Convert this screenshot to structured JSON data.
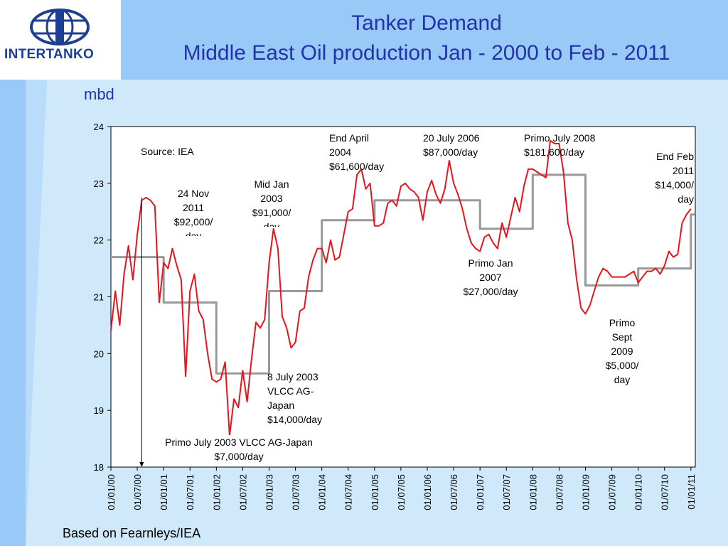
{
  "logo": {
    "text": "INTERTANKO"
  },
  "title": {
    "line1": "Tanker Demand",
    "line2": "Middle East Oil production Jan - 2000 to Feb - 2011"
  },
  "unit_label": "mbd",
  "footer": "Based on Fearnleys/IEA",
  "colors": {
    "production": "#e8141c",
    "average": "#999999",
    "header": "#99c9f7",
    "title": "#2233aa"
  },
  "annotations": {
    "source": "Source: IEA",
    "nov2011": [
      "24 Nov",
      "2011",
      "$92,000/",
      "day"
    ],
    "midjan2003": [
      "Mid Jan",
      "2003",
      "$91,000/",
      "day"
    ],
    "endapril2004": [
      "End April",
      "2004",
      "$61,600/day"
    ],
    "july2006": [
      "20 July 2006",
      "$87,000/day"
    ],
    "primojuly2008": [
      "Primo July 2008",
      "$181,600/day"
    ],
    "endfeb2011": [
      "End Feb",
      "2011",
      "$14,000/",
      "day"
    ],
    "primojan2007": [
      "Primo Jan",
      "2007",
      "$27,000/day"
    ],
    "primosept2009": [
      "Primo",
      "Sept",
      "2009",
      "$5,000/",
      "day"
    ],
    "july2003": [
      "8 July 2003",
      "VLCC AG-",
      "Japan",
      "$14,000/day"
    ],
    "primojuly2003": [
      "Primo July 2003 VLCC AG-Japan",
      "$7,000/day"
    ]
  },
  "chart_data": {
    "type": "line",
    "title": "",
    "xlabel": "",
    "ylabel": "mbd",
    "ylim": [
      18,
      24
    ],
    "yticks": [
      18,
      19,
      20,
      21,
      22,
      23,
      24
    ],
    "xlim": [
      "2000-01",
      "2011-02"
    ],
    "xticks": [
      "01/01/00",
      "01/07/00",
      "01/01/01",
      "01/07/01",
      "01/01/02",
      "01/07/02",
      "01/01/03",
      "01/07/03",
      "01/01/04",
      "01/07/04",
      "01/01/05",
      "01/07/05",
      "01/01/06",
      "01/07/06",
      "01/01/07",
      "01/07/07",
      "01/01/08",
      "01/07/08",
      "01/01/09",
      "01/07/09",
      "01/01/10",
      "01/07/10",
      "01/01/11"
    ],
    "grid": false,
    "series": [
      {
        "color": "#e8141c",
        "points": [
          [
            "2000-01",
            20.4
          ],
          [
            "2000-02",
            21.1
          ],
          [
            "2000-03",
            20.5
          ],
          [
            "2000-04",
            21.4
          ],
          [
            "2000-05",
            21.9
          ],
          [
            "2000-06",
            21.3
          ],
          [
            "2000-07",
            22.1
          ],
          [
            "2000-08",
            22.7
          ],
          [
            "2000-09",
            22.75
          ],
          [
            "2000-10",
            22.7
          ],
          [
            "2000-11",
            22.6
          ],
          [
            "2000-12",
            20.9
          ],
          [
            "2001-01",
            21.6
          ],
          [
            "2001-02",
            21.5
          ],
          [
            "2001-03",
            21.85
          ],
          [
            "2001-04",
            21.55
          ],
          [
            "2001-05",
            21.3
          ],
          [
            "2001-06",
            19.6
          ],
          [
            "2001-07",
            21.1
          ],
          [
            "2001-08",
            21.4
          ],
          [
            "2001-09",
            20.75
          ],
          [
            "2001-10",
            20.6
          ],
          [
            "2001-11",
            20.0
          ],
          [
            "2001-12",
            19.55
          ],
          [
            "2002-01",
            19.5
          ],
          [
            "2002-02",
            19.55
          ],
          [
            "2002-03",
            19.85
          ],
          [
            "2002-04",
            18.55
          ],
          [
            "2002-05",
            19.2
          ],
          [
            "2002-06",
            19.05
          ],
          [
            "2002-07",
            19.7
          ],
          [
            "2002-08",
            19.15
          ],
          [
            "2002-09",
            19.9
          ],
          [
            "2002-10",
            20.55
          ],
          [
            "2002-11",
            20.45
          ],
          [
            "2002-12",
            20.6
          ],
          [
            "2003-01",
            21.6
          ],
          [
            "2003-02",
            22.2
          ],
          [
            "2003-03",
            21.85
          ],
          [
            "2003-04",
            20.65
          ],
          [
            "2003-05",
            20.45
          ],
          [
            "2003-06",
            20.1
          ],
          [
            "2003-07",
            20.2
          ],
          [
            "2003-08",
            20.75
          ],
          [
            "2003-09",
            20.8
          ],
          [
            "2003-10",
            21.35
          ],
          [
            "2003-11",
            21.65
          ],
          [
            "2003-12",
            21.85
          ],
          [
            "2004-01",
            21.85
          ],
          [
            "2004-02",
            21.6
          ],
          [
            "2004-03",
            22.0
          ],
          [
            "2004-04",
            21.65
          ],
          [
            "2004-05",
            21.7
          ],
          [
            "2004-06",
            22.1
          ],
          [
            "2004-07",
            22.5
          ],
          [
            "2004-08",
            22.55
          ],
          [
            "2004-09",
            23.15
          ],
          [
            "2004-10",
            23.25
          ],
          [
            "2004-11",
            22.9
          ],
          [
            "2004-12",
            23.0
          ],
          [
            "2005-01",
            22.25
          ],
          [
            "2005-02",
            22.25
          ],
          [
            "2005-03",
            22.3
          ],
          [
            "2005-04",
            22.65
          ],
          [
            "2005-05",
            22.7
          ],
          [
            "2005-06",
            22.6
          ],
          [
            "2005-07",
            22.95
          ],
          [
            "2005-08",
            23.0
          ],
          [
            "2005-09",
            22.9
          ],
          [
            "2005-10",
            22.85
          ],
          [
            "2005-11",
            22.75
          ],
          [
            "2005-12",
            22.35
          ],
          [
            "2006-01",
            22.85
          ],
          [
            "2006-02",
            23.05
          ],
          [
            "2006-03",
            22.8
          ],
          [
            "2006-04",
            22.65
          ],
          [
            "2006-05",
            22.9
          ],
          [
            "2006-06",
            23.4
          ],
          [
            "2006-07",
            23.0
          ],
          [
            "2006-08",
            22.8
          ],
          [
            "2006-09",
            22.55
          ],
          [
            "2006-10",
            22.2
          ],
          [
            "2006-11",
            21.95
          ],
          [
            "2006-12",
            21.85
          ],
          [
            "2007-01",
            21.8
          ],
          [
            "2007-02",
            22.05
          ],
          [
            "2007-03",
            22.1
          ],
          [
            "2007-04",
            21.95
          ],
          [
            "2007-05",
            21.85
          ],
          [
            "2007-06",
            22.3
          ],
          [
            "2007-07",
            22.05
          ],
          [
            "2007-08",
            22.4
          ],
          [
            "2007-09",
            22.75
          ],
          [
            "2007-10",
            22.5
          ],
          [
            "2007-11",
            22.95
          ],
          [
            "2007-12",
            23.25
          ],
          [
            "2008-01",
            23.25
          ],
          [
            "2008-02",
            23.2
          ],
          [
            "2008-03",
            23.15
          ],
          [
            "2008-04",
            23.1
          ],
          [
            "2008-05",
            23.75
          ],
          [
            "2008-06",
            23.7
          ],
          [
            "2008-07",
            23.7
          ],
          [
            "2008-08",
            23.2
          ],
          [
            "2008-09",
            22.3
          ],
          [
            "2008-10",
            22.0
          ],
          [
            "2008-11",
            21.3
          ],
          [
            "2008-12",
            20.8
          ],
          [
            "2009-01",
            20.7
          ],
          [
            "2009-02",
            20.85
          ],
          [
            "2009-03",
            21.1
          ],
          [
            "2009-04",
            21.35
          ],
          [
            "2009-05",
            21.5
          ],
          [
            "2009-06",
            21.45
          ],
          [
            "2009-07",
            21.35
          ],
          [
            "2009-08",
            21.35
          ],
          [
            "2009-09",
            21.35
          ],
          [
            "2009-10",
            21.35
          ],
          [
            "2009-11",
            21.4
          ],
          [
            "2009-12",
            21.45
          ],
          [
            "2010-01",
            21.25
          ],
          [
            "2010-02",
            21.35
          ],
          [
            "2010-03",
            21.45
          ],
          [
            "2010-04",
            21.45
          ],
          [
            "2010-05",
            21.5
          ],
          [
            "2010-06",
            21.4
          ],
          [
            "2010-07",
            21.55
          ],
          [
            "2010-08",
            21.8
          ],
          [
            "2010-09",
            21.7
          ],
          [
            "2010-10",
            21.75
          ],
          [
            "2010-11",
            22.3
          ],
          [
            "2010-12",
            22.45
          ],
          [
            "2011-01",
            22.55
          ]
        ]
      },
      {
        "color": "#999999",
        "points": [
          [
            "2000-01",
            21.7
          ],
          [
            "2001-01",
            21.7
          ],
          [
            "2001-01",
            20.9
          ],
          [
            "2002-01",
            20.9
          ],
          [
            "2002-01",
            19.65
          ],
          [
            "2003-01",
            19.65
          ],
          [
            "2003-01",
            21.1
          ],
          [
            "2004-01",
            21.1
          ],
          [
            "2004-01",
            22.35
          ],
          [
            "2005-01",
            22.35
          ],
          [
            "2005-01",
            22.7
          ],
          [
            "2007-01",
            22.7
          ],
          [
            "2007-01",
            22.2
          ],
          [
            "2008-01",
            22.2
          ],
          [
            "2008-01",
            23.15
          ],
          [
            "2009-01",
            23.15
          ],
          [
            "2009-01",
            21.2
          ],
          [
            "2010-01",
            21.2
          ],
          [
            "2010-01",
            21.5
          ],
          [
            "2011-01",
            21.5
          ],
          [
            "2011-01",
            22.45
          ],
          [
            "2011-02",
            22.45
          ]
        ]
      }
    ],
    "marker": {
      "x": "2000-08",
      "from": 22.75,
      "to": 18
    }
  }
}
